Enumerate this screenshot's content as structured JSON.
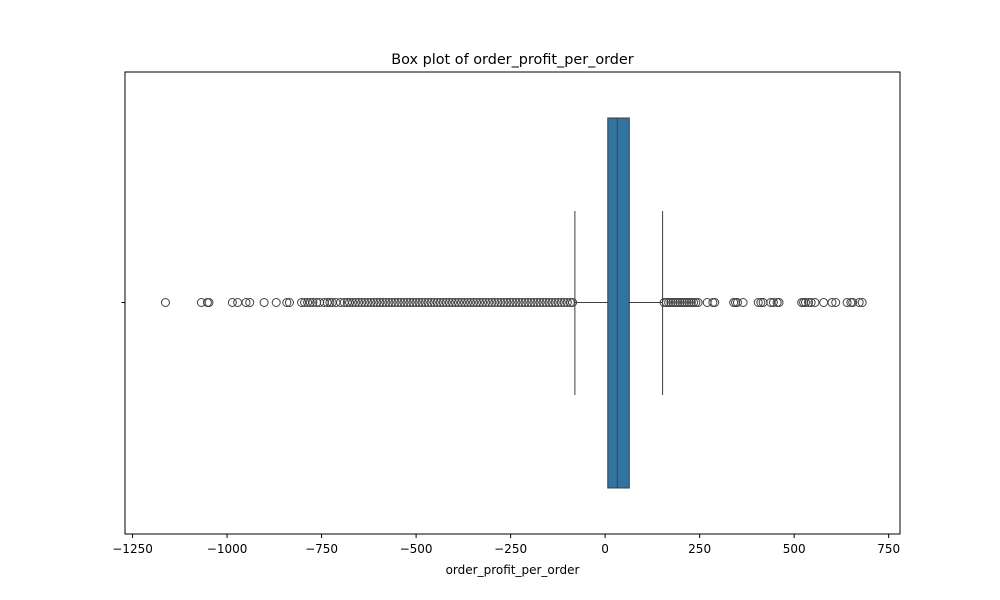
{
  "chart_data": {
    "type": "box",
    "title": "Box plot of order_profit_per_order",
    "xlabel": "order_profit_per_order",
    "ylabel": "",
    "xlim": [
      -1270,
      780
    ],
    "x_ticks": [
      -1250,
      -1000,
      -750,
      -500,
      -250,
      0,
      250,
      500,
      750
    ],
    "x_tick_labels": [
      "−1250",
      "−1000",
      "−750",
      "−500",
      "−250",
      "0",
      "250",
      "500",
      "750"
    ],
    "grid": false,
    "box_color": "#3274a1",
    "series": [
      {
        "whisker_low": -80,
        "q1": 7,
        "median": 32,
        "q3": 64,
        "whisker_high": 152,
        "outliers": [
          -1163,
          -1068,
          -1052,
          -1048,
          -986,
          -972,
          -950,
          -940,
          -902,
          -870,
          -842,
          -835,
          -803,
          -795,
          -787,
          -780,
          -773,
          -763,
          -755,
          -743,
          -735,
          -728,
          -722,
          -712,
          -700,
          -690,
          -682,
          -676,
          -668,
          -660,
          -652,
          -644,
          -636,
          -628,
          -620,
          -612,
          -604,
          -596,
          -588,
          -580,
          -572,
          -564,
          -556,
          -548,
          -540,
          -532,
          -524,
          -516,
          -508,
          -500,
          -492,
          -484,
          -476,
          -468,
          -460,
          -452,
          -444,
          -436,
          -428,
          -420,
          -412,
          -404,
          -396,
          -388,
          -380,
          -372,
          -364,
          -356,
          -348,
          -340,
          -332,
          -324,
          -316,
          -308,
          -300,
          -292,
          -284,
          -276,
          -268,
          -260,
          -252,
          -244,
          -236,
          -228,
          -220,
          -212,
          -204,
          -196,
          -188,
          -180,
          -172,
          -164,
          -156,
          -148,
          -140,
          -132,
          -124,
          -116,
          -108,
          -100,
          -92,
          -86,
          156,
          162,
          168,
          174,
          180,
          186,
          192,
          198,
          204,
          210,
          216,
          222,
          228,
          234,
          240,
          246,
          270,
          285,
          290,
          340,
          345,
          350,
          365,
          405,
          412,
          418,
          438,
          445,
          455,
          460,
          520,
          525,
          530,
          538,
          545,
          555,
          578,
          600,
          610,
          640,
          650,
          655,
          672,
          680
        ]
      }
    ]
  }
}
